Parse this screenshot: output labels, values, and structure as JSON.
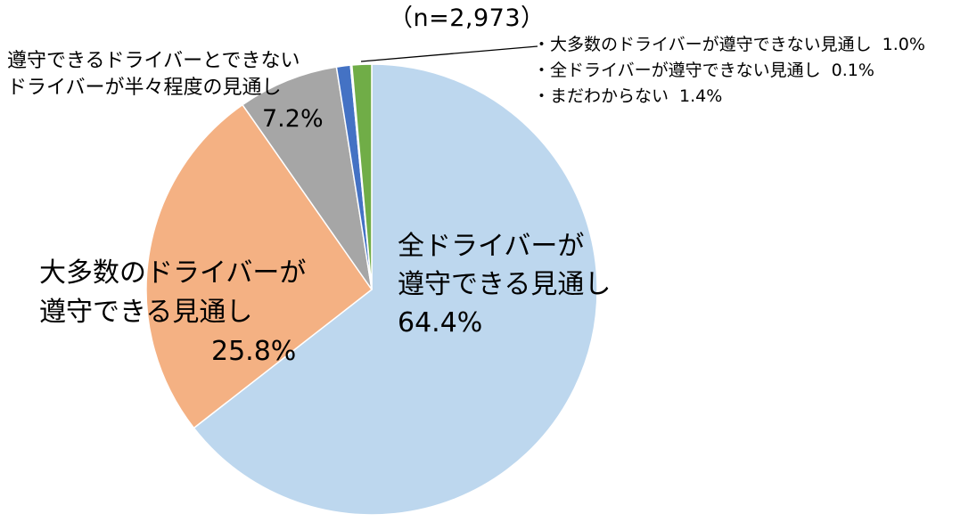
{
  "chart_data": {
    "type": "pie",
    "title": "",
    "sample_size_label": "（n=2,973）",
    "start_angle_deg": 0,
    "direction": "clockwise",
    "slices": [
      {
        "label_lines": [
          "全ドライバーが",
          "遵守できる見通し"
        ],
        "value": 64.4,
        "value_label": "64.4%",
        "color": "#BDD7EE"
      },
      {
        "label_lines": [
          "大多数のドライバーが",
          "遵守できる見通し"
        ],
        "value": 25.8,
        "value_label": "25.8%",
        "color": "#F4B183"
      },
      {
        "label_lines": [
          "遵守できるドライバーとできない",
          "ドライバーが半々程度の見通し"
        ],
        "value": 7.2,
        "value_label": "7.2%",
        "color": "#A6A6A6"
      },
      {
        "label_lines": [
          "・大多数のドライバーが遵守できない見通し"
        ],
        "value": 1.0,
        "value_label": "1.0%",
        "color": "#4472C4"
      },
      {
        "label_lines": [
          "・全ドライバーが遵守できない見通し"
        ],
        "value": 0.1,
        "value_label": "0.1%",
        "color": "#FFC000"
      },
      {
        "label_lines": [
          "・まだわからない"
        ],
        "value": 1.4,
        "value_label": "1.4%",
        "color": "#70AD47"
      }
    ]
  }
}
